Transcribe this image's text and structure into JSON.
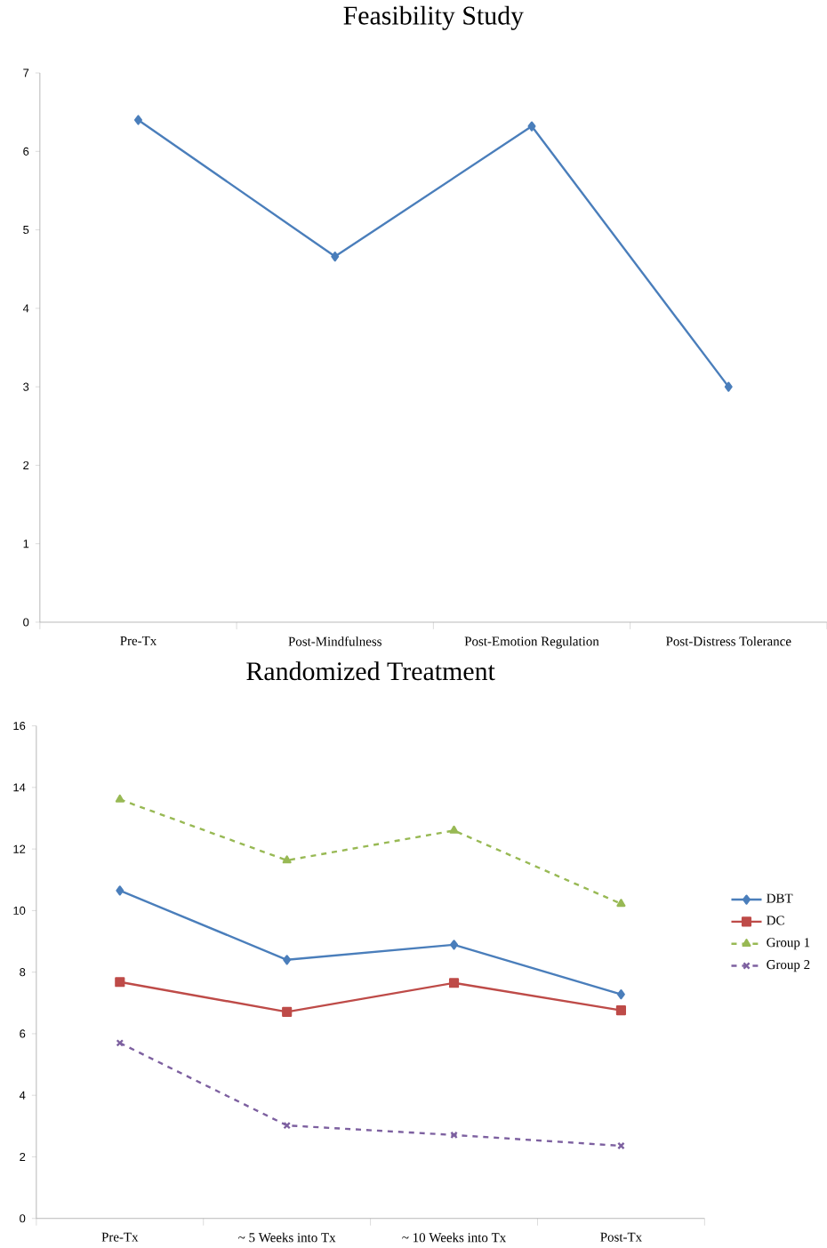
{
  "chart_data": [
    {
      "type": "line",
      "title": "Feasibility Study",
      "categories": [
        "Pre-Tx",
        "Post-Mindfulness",
        "Post-Emotion Regulation",
        "Post-Distress Tolerance"
      ],
      "series": [
        {
          "color": "#4a7ebb",
          "marker": "diamond",
          "line_style": "solid",
          "values": [
            6.4,
            4.66,
            6.32,
            3.0
          ]
        }
      ],
      "ylim": [
        0,
        7
      ],
      "yticks": [
        0,
        1,
        2,
        3,
        4,
        5,
        6,
        7
      ],
      "grid": false,
      "legend": false
    },
    {
      "type": "line",
      "title": "Randomized Treatment",
      "categories": [
        "Pre-Tx",
        "~ 5 Weeks into Tx",
        "~ 10 Weeks into Tx",
        "Post-Tx"
      ],
      "series": [
        {
          "name": "DBT",
          "color": "#4a7ebb",
          "marker": "diamond",
          "line_style": "solid",
          "values": [
            10.65,
            8.4,
            8.89,
            7.28
          ]
        },
        {
          "name": "DC",
          "color": "#be4b48",
          "marker": "square",
          "line_style": "solid",
          "values": [
            7.68,
            6.71,
            7.65,
            6.76
          ]
        },
        {
          "name": "Group 1",
          "color": "#98b954",
          "marker": "triangle",
          "line_style": "dashed",
          "values": [
            13.61,
            11.63,
            12.6,
            10.22
          ]
        },
        {
          "name": "Group 2",
          "color": "#7d60a0",
          "marker": "cross",
          "line_style": "dashed",
          "values": [
            5.7,
            3.02,
            2.71,
            2.36
          ]
        }
      ],
      "ylim": [
        0,
        16
      ],
      "yticks": [
        0,
        2,
        4,
        6,
        8,
        10,
        12,
        14,
        16
      ],
      "grid": false,
      "legend": "right"
    }
  ]
}
